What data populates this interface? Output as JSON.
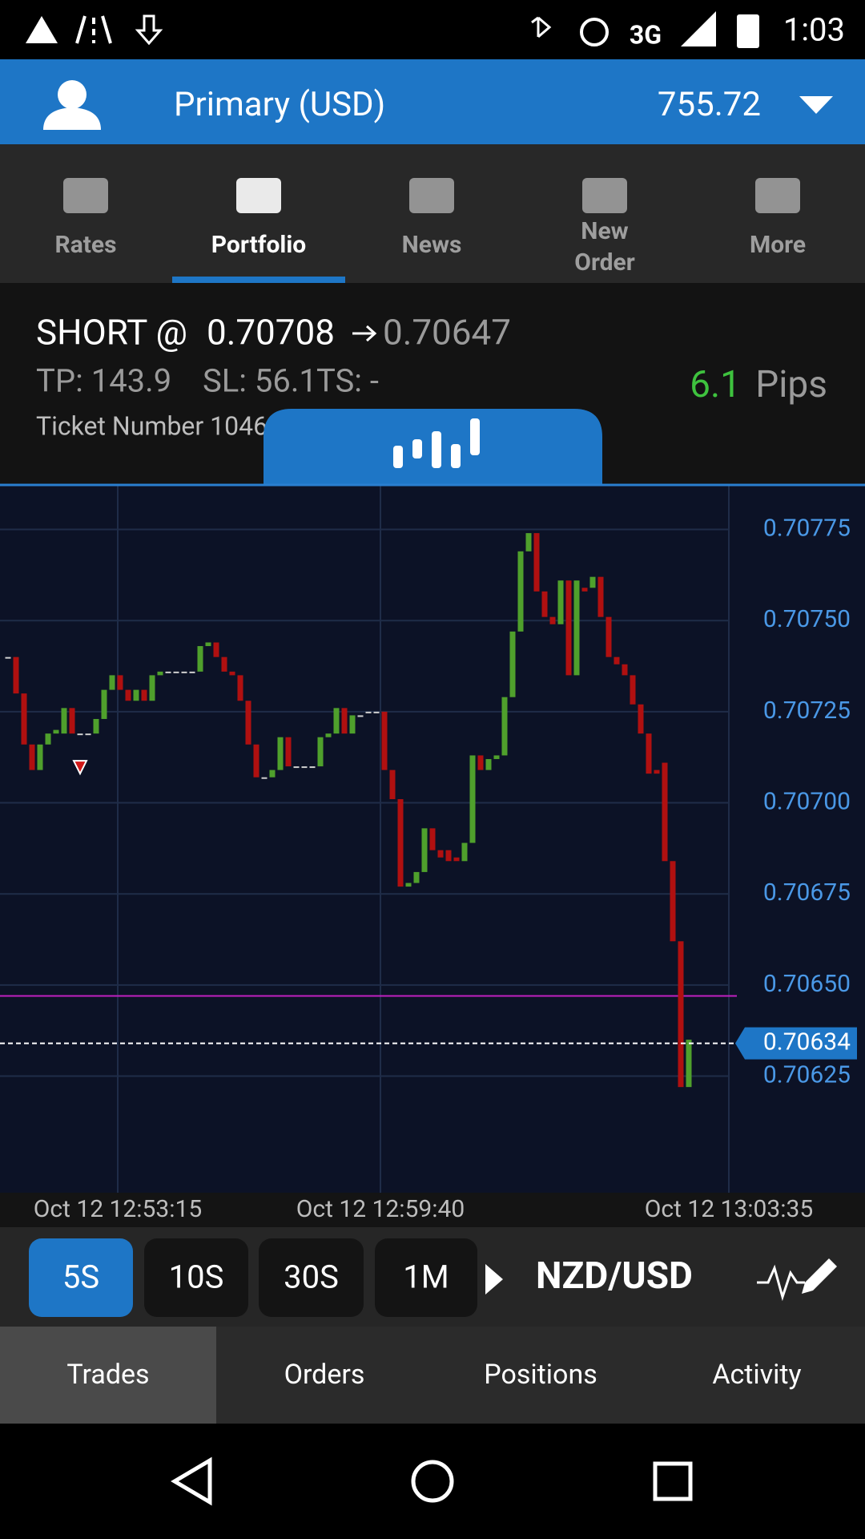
{
  "status_bar": {
    "network": "3G",
    "time": "1:03"
  },
  "account": {
    "name": "Primary (USD)",
    "balance": "755.72"
  },
  "nav_tabs": [
    "Rates",
    "Portfolio",
    "News",
    "New Order",
    "More"
  ],
  "nav_active": 1,
  "position": {
    "side": "SHORT @",
    "entry_price": 0.70708,
    "current_price": 0.70647,
    "tp": "TP: 143.9",
    "sl": "SL: 56.1",
    "ts": "TS: -",
    "pips": 6.1,
    "pips_unit": "Pips",
    "ticket": "Ticket Number 1046"
  },
  "chart": {
    "type": "candlestick",
    "ylim": [
      0.70593,
      0.70787
    ],
    "yticks": [
      0.70775,
      {
        "value": 0.7075,
        "label": "0.70750"
      },
      0.70725,
      {
        "value": 0.707,
        "label": "0.70700"
      },
      0.70675,
      {
        "value": 0.7065,
        "label": "0.70650"
      },
      0.70625
    ],
    "last_price": 0.70634,
    "xticks": [
      "Oct 12 12:53:15",
      "Oct 12 12:59:40",
      "Oct 12 13:03:35"
    ],
    "candles": [
      [
        0.7074,
        0.7074
      ],
      [
        0.7074,
        0.7073
      ],
      [
        0.7073,
        0.70716
      ],
      [
        0.70716,
        0.70709
      ],
      [
        0.70709,
        0.70716
      ],
      [
        0.70716,
        0.70719
      ],
      [
        0.70719,
        0.7072
      ],
      [
        0.70719,
        0.70726
      ],
      [
        0.70726,
        0.70719
      ],
      [
        0.70719,
        0.70719
      ],
      [
        0.70719,
        0.70719
      ],
      [
        0.70719,
        0.70723
      ],
      [
        0.70723,
        0.70731
      ],
      [
        0.70731,
        0.70735
      ],
      [
        0.70735,
        0.70731
      ],
      [
        0.70731,
        0.70728
      ],
      [
        0.70728,
        0.70731
      ],
      [
        0.70731,
        0.70728
      ],
      [
        0.70728,
        0.70735
      ],
      [
        0.70735,
        0.70736
      ],
      [
        0.70736,
        0.70736
      ],
      [
        0.70736,
        0.70736
      ],
      [
        0.70736,
        0.70736
      ],
      [
        0.70736,
        0.70736
      ],
      [
        0.70736,
        0.70743
      ],
      [
        0.70743,
        0.70744
      ],
      [
        0.70744,
        0.7074
      ],
      [
        0.7074,
        0.70736
      ],
      [
        0.70736,
        0.70735
      ],
      [
        0.70735,
        0.70728
      ],
      [
        0.70728,
        0.70716
      ],
      [
        0.70716,
        0.70707
      ],
      [
        0.70707,
        0.70707
      ],
      [
        0.70707,
        0.70709
      ],
      [
        0.70709,
        0.70718
      ],
      [
        0.70718,
        0.7071
      ],
      [
        0.7071,
        0.7071
      ],
      [
        0.7071,
        0.7071
      ],
      [
        0.7071,
        0.7071
      ],
      [
        0.7071,
        0.70718
      ],
      [
        0.70718,
        0.70719
      ],
      [
        0.70719,
        0.70726
      ],
      [
        0.70726,
        0.70719
      ],
      [
        0.70719,
        0.70724
      ],
      [
        0.70724,
        0.70724
      ],
      [
        0.70725,
        0.70725
      ],
      [
        0.70725,
        0.70725
      ],
      [
        0.70725,
        0.70709
      ],
      [
        0.70709,
        0.70701
      ],
      [
        0.70701,
        0.70677
      ],
      [
        0.70677,
        0.70678
      ],
      [
        0.70678,
        0.70681
      ],
      [
        0.70681,
        0.70693
      ],
      [
        0.70693,
        0.70687
      ],
      [
        0.70687,
        0.70685
      ],
      [
        0.70687,
        0.70684
      ],
      [
        0.70685,
        0.70684
      ],
      [
        0.70684,
        0.70689
      ],
      [
        0.70689,
        0.70713
      ],
      [
        0.70713,
        0.70709
      ],
      [
        0.70709,
        0.70712
      ],
      [
        0.70712,
        0.70713
      ],
      [
        0.70713,
        0.70729
      ],
      [
        0.70729,
        0.70747
      ],
      [
        0.70747,
        0.70769
      ],
      [
        0.70769,
        0.70774
      ],
      [
        0.70774,
        0.70758
      ],
      [
        0.70758,
        0.70751
      ],
      [
        0.70751,
        0.70749
      ],
      [
        0.70749,
        0.70761
      ],
      [
        0.70761,
        0.70735
      ],
      [
        0.70735,
        0.70761
      ],
      [
        0.70759,
        0.70758
      ],
      [
        0.70759,
        0.70762
      ],
      [
        0.70762,
        0.70751
      ],
      [
        0.70751,
        0.7074
      ],
      [
        0.7074,
        0.70738
      ],
      [
        0.70738,
        0.70735
      ],
      [
        0.70735,
        0.70727
      ],
      [
        0.70727,
        0.70719
      ],
      [
        0.70719,
        0.70708
      ],
      [
        0.70709,
        0.70708
      ],
      [
        0.70711,
        0.70684
      ],
      [
        0.70684,
        0.70662
      ],
      [
        0.70662,
        0.70622
      ],
      [
        0.70622,
        0.70635
      ]
    ]
  },
  "timeframes": [
    "5S",
    "10S",
    "30S",
    "1M"
  ],
  "timeframe_active": 0,
  "instrument": "NZD/USD",
  "bottom_tabs": [
    "Trades",
    "Orders",
    "Positions",
    "Activity"
  ],
  "bottom_active": 0
}
